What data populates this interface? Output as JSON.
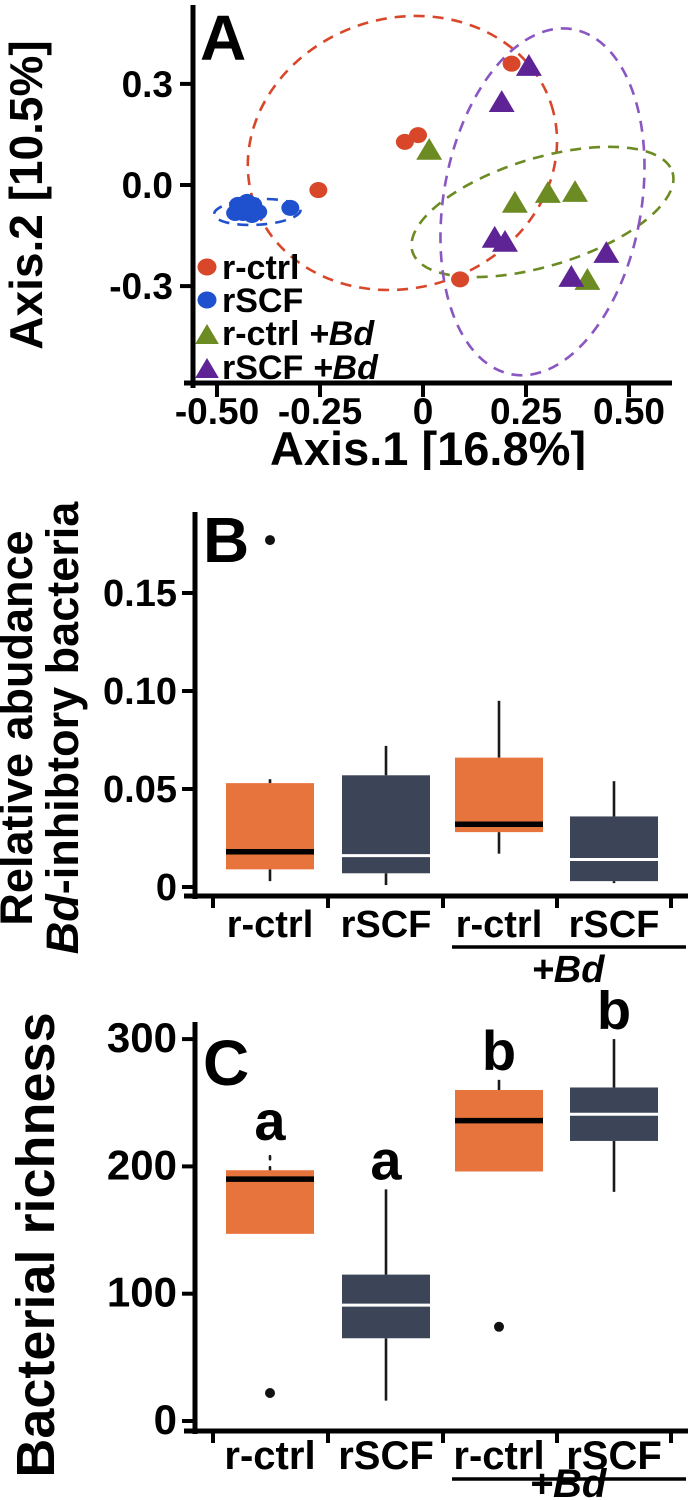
{
  "figure": {
    "background": "#ffffff",
    "panel_letters": [
      "A",
      "B",
      "C"
    ]
  },
  "colors": {
    "axis": "#000000",
    "orange_box": "#E8743D",
    "navy_box": "#3B4557",
    "red_point": "#D9472B",
    "blue_point": "#1F51CE",
    "olive_point": "#6D8B23",
    "purple_point": "#5E2496",
    "purple_ellipse": "#8A56C2",
    "median_black": "#000000",
    "median_white": "#FFFFFF",
    "outlier": "#111111"
  },
  "chart_data": [
    {
      "id": "A",
      "type": "scatter",
      "panel_label": "A",
      "xlabel": "Axis.1 [16.8%]",
      "ylabel": "Axis.2 [10.5%]",
      "xlim": [
        -0.5,
        0.5
      ],
      "ylim": [
        -0.55,
        0.52
      ],
      "xticks": [
        -0.5,
        -0.25,
        0,
        0.25,
        0.5
      ],
      "xtick_labels": [
        "-0.50",
        "-0.25",
        "0",
        "0.25",
        "0.50"
      ],
      "yticks": [
        0.3,
        0.0,
        -0.3
      ],
      "ytick_labels": [
        "0.3",
        "0.0",
        "-0.3"
      ],
      "grid": false,
      "legend_position": "lower-left-inside",
      "legend": [
        {
          "marker": "circle",
          "color": "#D9472B",
          "label": "r-ctrl",
          "italic_suffix": ""
        },
        {
          "marker": "circle",
          "color": "#1F51CE",
          "label": "rSCF",
          "italic_suffix": ""
        },
        {
          "marker": "triangle",
          "color": "#6D8B23",
          "label": "r-ctrl ",
          "italic_suffix": "+Bd"
        },
        {
          "marker": "triangle",
          "color": "#5E2496",
          "label": "rSCF ",
          "italic_suffix": "+Bd"
        }
      ],
      "series": [
        {
          "name": "r-ctrl",
          "marker": "circle",
          "color": "#D9472B",
          "points": [
            [
              0.215,
              0.36
            ],
            [
              -0.012,
              0.148
            ],
            [
              -0.044,
              0.128
            ],
            [
              -0.254,
              -0.015
            ],
            [
              0.09,
              -0.28
            ]
          ]
        },
        {
          "name": "rSCF",
          "marker": "circle",
          "color": "#1F51CE",
          "points": [
            [
              -0.449,
              -0.059
            ],
            [
              -0.427,
              -0.05
            ],
            [
              -0.412,
              -0.059
            ],
            [
              -0.456,
              -0.083
            ],
            [
              -0.437,
              -0.083
            ],
            [
              -0.415,
              -0.089
            ],
            [
              -0.4,
              -0.08
            ],
            [
              -0.322,
              -0.068
            ]
          ]
        },
        {
          "name": "r-ctrl +Bd",
          "marker": "triangle",
          "color": "#6D8B23",
          "points": [
            [
              0.015,
              0.104
            ],
            [
              0.223,
              -0.053
            ],
            [
              0.303,
              -0.024
            ],
            [
              0.369,
              -0.021
            ],
            [
              0.399,
              -0.282
            ]
          ]
        },
        {
          "name": "rSCF +Bd",
          "marker": "triangle",
          "color": "#5E2496",
          "points": [
            [
              0.257,
              0.353
            ],
            [
              0.191,
              0.246
            ],
            [
              0.174,
              -0.157
            ],
            [
              0.199,
              -0.169
            ],
            [
              0.445,
              -0.202
            ],
            [
              0.36,
              -0.273
            ]
          ]
        }
      ],
      "ellipses": [
        {
          "group": "r-ctrl",
          "color": "#D9472B",
          "cx": -0.05,
          "cy": 0.095,
          "rx": 0.38,
          "ry": 0.4,
          "rotate": -18
        },
        {
          "group": "rSCF",
          "color": "#1F51CE",
          "cx": -0.402,
          "cy": -0.08,
          "rx": 0.105,
          "ry": 0.038,
          "rotate": -3
        },
        {
          "group": "r-ctrl +Bd",
          "color": "#6D8B23",
          "cx": 0.29,
          "cy": -0.08,
          "rx": 0.33,
          "ry": 0.16,
          "rotate": -17
        },
        {
          "group": "rSCF +Bd",
          "color": "#8A56C2",
          "cx": 0.29,
          "cy": -0.05,
          "rx": 0.24,
          "ry": 0.52,
          "rotate": 10
        }
      ]
    },
    {
      "id": "B",
      "type": "box",
      "panel_label": "B",
      "ylabel_line1": "Relative abudance",
      "ylabel_line2_italic": "Bd",
      "ylabel_line2_rest": "-inhibtory bacteria",
      "ylim": [
        0,
        0.18
      ],
      "yticks": [
        0,
        0.05,
        0.1,
        0.15
      ],
      "ytick_labels": [
        "0",
        "0.05",
        "0.10",
        "0.15"
      ],
      "categories": [
        "r-ctrl",
        "rSCF",
        "r-ctrl",
        "rSCF"
      ],
      "group_annotation_italic": "+Bd",
      "group_annotation_span": [
        3,
        4
      ],
      "boxes": [
        {
          "label": "r-ctrl",
          "fill": "#E8743D",
          "median_color": "#000000",
          "q1": 0.009,
          "q3": 0.053,
          "median": 0.018,
          "whisker_low": 0.003,
          "whisker_high": 0.055,
          "whisker_high_style": "solid",
          "outliers": [
            0.177
          ]
        },
        {
          "label": "rSCF",
          "fill": "#3B4557",
          "median_color": "#FFFFFF",
          "q1": 0.007,
          "q3": 0.057,
          "median": 0.016,
          "whisker_low": 0.001,
          "whisker_high": 0.072,
          "whisker_high_style": "solid",
          "outliers": []
        },
        {
          "label": "r-ctrl",
          "fill": "#E8743D",
          "median_color": "#000000",
          "q1": 0.028,
          "q3": 0.066,
          "median": 0.032,
          "whisker_low": 0.017,
          "whisker_high": 0.095,
          "whisker_high_style": "solid",
          "outliers": []
        },
        {
          "label": "rSCF",
          "fill": "#3B4557",
          "median_color": "#FFFFFF",
          "q1": 0.003,
          "q3": 0.036,
          "median": 0.014,
          "whisker_low": 0.002,
          "whisker_high": 0.054,
          "whisker_high_style": "solid",
          "outliers": []
        }
      ]
    },
    {
      "id": "C",
      "type": "box",
      "panel_label": "C",
      "ylabel": "Bacterial richness",
      "ylim": [
        0,
        310
      ],
      "yticks": [
        0,
        100,
        200,
        300
      ],
      "ytick_labels": [
        "0",
        "100",
        "200",
        "300"
      ],
      "categories": [
        "r-ctrl",
        "rSCF",
        "r-ctrl",
        "rSCF"
      ],
      "group_annotation_italic": "+Bd",
      "group_annotation_span": [
        3,
        4
      ],
      "sig_letters": [
        "a",
        "a",
        "b",
        "b"
      ],
      "boxes": [
        {
          "label": "r-ctrl",
          "fill": "#E8743D",
          "median_color": "#000000",
          "q1": 147,
          "q3": 197,
          "median": 190,
          "whisker_low": null,
          "whisker_high": 213,
          "whisker_high_style": "dotted",
          "outliers": [
            22
          ],
          "letter": "a"
        },
        {
          "label": "rSCF",
          "fill": "#3B4557",
          "median_color": "#FFFFFF",
          "q1": 65,
          "q3": 115,
          "median": 91,
          "whisker_low": 16,
          "whisker_high": 182,
          "whisker_high_style": "solid",
          "outliers": [],
          "letter": "a"
        },
        {
          "label": "r-ctrl",
          "fill": "#E8743D",
          "median_color": "#000000",
          "q1": 196,
          "q3": 260,
          "median": 236,
          "whisker_low": null,
          "whisker_high": 268,
          "whisker_high_style": "solid",
          "outliers": [
            74
          ],
          "letter": "b"
        },
        {
          "label": "rSCF",
          "fill": "#3B4557",
          "median_color": "#FFFFFF",
          "q1": 220,
          "q3": 262,
          "median": 241,
          "whisker_low": 180,
          "whisker_high": 300,
          "whisker_high_style": "solid",
          "outliers": [],
          "letter": "b"
        }
      ]
    }
  ]
}
